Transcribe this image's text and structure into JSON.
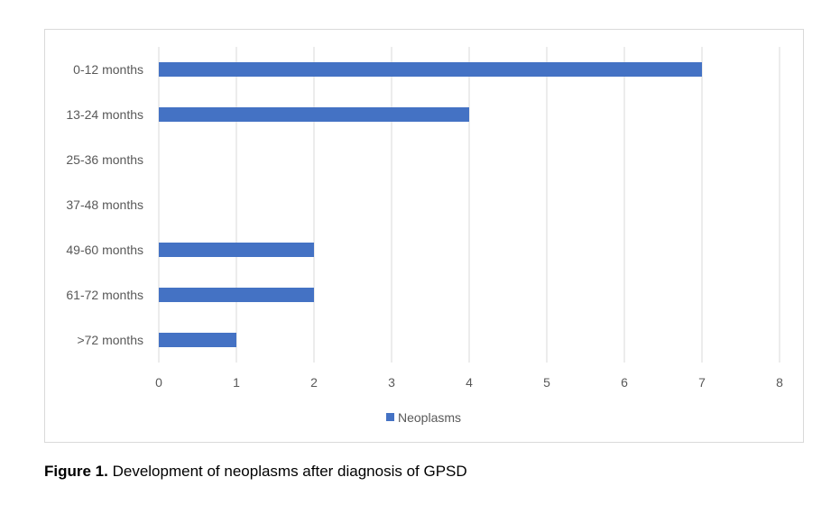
{
  "chart_data": {
    "type": "bar",
    "orientation": "horizontal",
    "title": "",
    "categories": [
      "0-12 months",
      "13-24 months",
      "25-36 months",
      "37-48 months",
      "49-60 months",
      "61-72 months",
      ">72 months"
    ],
    "series": [
      {
        "name": "Neoplasms",
        "values": [
          7,
          4,
          0,
          0,
          2,
          2,
          1
        ],
        "color": "#4472c4"
      }
    ],
    "xlim": [
      0,
      8
    ],
    "xticks": [
      "0",
      "1",
      "2",
      "3",
      "4",
      "5",
      "6",
      "7",
      "8"
    ],
    "grid": true,
    "legend_position": "bottom",
    "xlabel": "",
    "ylabel": ""
  },
  "caption": {
    "label": "Figure 1.",
    "text": " Development of neoplasms after diagnosis of GPSD"
  }
}
